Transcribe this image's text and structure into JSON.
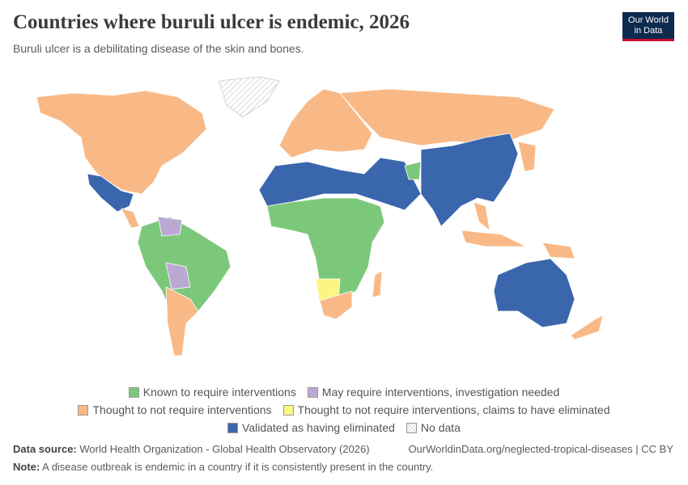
{
  "header": {
    "title": "Countries where buruli ulcer is endemic, 2026",
    "subtitle": "Buruli ulcer is a debilitating disease of the skin and bones."
  },
  "logo": {
    "line1": "Our World",
    "line2": "in Data"
  },
  "legend": {
    "rows": [
      [
        {
          "label": "Known to require interventions",
          "color": "#7cc87a"
        },
        {
          "label": "May require interventions, investigation needed",
          "color": "#bba9d4"
        }
      ],
      [
        {
          "label": "Thought to not require interventions",
          "color": "#f9b986"
        },
        {
          "label": "Thought to not require interventions, claims to have eliminated",
          "color": "#fbf584"
        }
      ],
      [
        {
          "label": "Validated as having eliminated",
          "color": "#3a66ad"
        },
        {
          "label": "No data",
          "color": "hatch"
        }
      ]
    ]
  },
  "footer": {
    "source_label": "Data source:",
    "source": "World Health Organization - Global Health Observatory (2026)",
    "url": "OurWorldinData.org/neglected-tropical-diseases | CC BY",
    "note_label": "Note:",
    "note": "A disease outbreak is endemic in a country if it is consistently present in the country."
  }
}
